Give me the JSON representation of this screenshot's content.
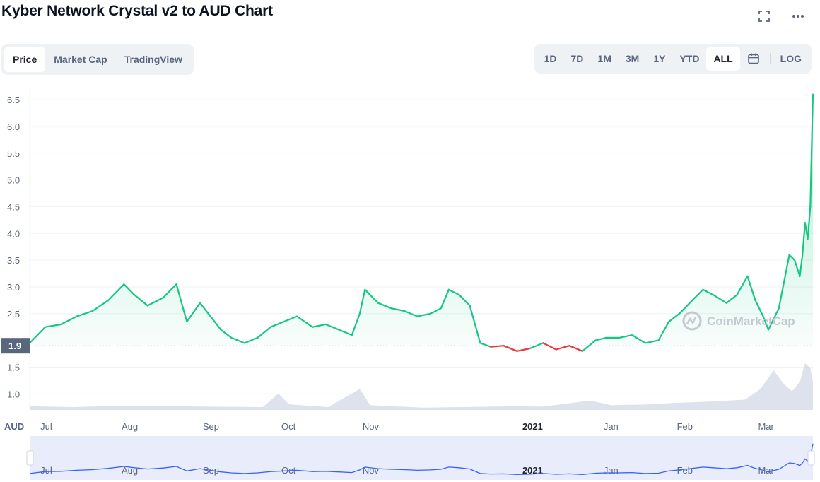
{
  "title": "Kyber Network Crystal v2 to AUD Chart",
  "tabs": [
    {
      "label": "Price",
      "active": true
    },
    {
      "label": "Market Cap",
      "active": false
    },
    {
      "label": "TradingView",
      "active": false
    }
  ],
  "ranges": [
    {
      "label": "1D",
      "active": false
    },
    {
      "label": "7D",
      "active": false
    },
    {
      "label": "1M",
      "active": false
    },
    {
      "label": "3M",
      "active": false
    },
    {
      "label": "1Y",
      "active": false
    },
    {
      "label": "YTD",
      "active": false
    },
    {
      "label": "ALL",
      "active": true
    }
  ],
  "log_label": "LOG",
  "icons": {
    "fullscreen": "fullscreen-icon",
    "more": "more-icon",
    "calendar": "calendar-icon"
  },
  "watermark": "CoinMarketCap",
  "colors": {
    "up": "#16c784",
    "down": "#ea3943",
    "volume": "#cfd6e4",
    "navigator": "#3861fb"
  },
  "chart_data": {
    "type": "line",
    "currency_label": "AUD",
    "reference_price": 1.9,
    "reference_label": "1.9",
    "y_ticks": [
      1.0,
      1.5,
      2.5,
      3.0,
      3.5,
      4.0,
      4.5,
      5.0,
      5.5,
      6.0,
      6.5
    ],
    "ylim": [
      0.7,
      6.7
    ],
    "x_ticks": [
      {
        "label": "Jul",
        "date": "2020-07-01"
      },
      {
        "label": "Aug",
        "date": "2020-08-01"
      },
      {
        "label": "Sep",
        "date": "2020-09-01"
      },
      {
        "label": "Oct",
        "date": "2020-10-01"
      },
      {
        "label": "Nov",
        "date": "2020-11-01"
      },
      {
        "label": "2021",
        "date": "2021-01-01",
        "bold": true
      },
      {
        "label": "Jan",
        "date": "2021-02-01"
      },
      {
        "label": "Feb",
        "date": "2021-03-01"
      },
      {
        "label": "Mar",
        "date": "2021-04-01"
      }
    ],
    "xlim": [
      "2020-06-28",
      "2021-04-23"
    ],
    "series": [
      {
        "points": [
          [
            "2020-06-28",
            1.95
          ],
          [
            "2020-07-04",
            2.25
          ],
          [
            "2020-07-10",
            2.3
          ],
          [
            "2020-07-16",
            2.45
          ],
          [
            "2020-07-22",
            2.55
          ],
          [
            "2020-07-28",
            2.75
          ],
          [
            "2020-08-03",
            3.05
          ],
          [
            "2020-08-07",
            2.85
          ],
          [
            "2020-08-12",
            2.65
          ],
          [
            "2020-08-18",
            2.8
          ],
          [
            "2020-08-23",
            3.05
          ],
          [
            "2020-08-27",
            2.35
          ],
          [
            "2020-09-01",
            2.7
          ],
          [
            "2020-09-05",
            2.45
          ],
          [
            "2020-09-09",
            2.2
          ],
          [
            "2020-09-13",
            2.05
          ],
          [
            "2020-09-18",
            1.95
          ],
          [
            "2020-09-23",
            2.05
          ],
          [
            "2020-09-28",
            2.25
          ],
          [
            "2020-10-03",
            2.35
          ],
          [
            "2020-10-08",
            2.45
          ],
          [
            "2020-10-14",
            2.25
          ],
          [
            "2020-10-19",
            2.3
          ],
          [
            "2020-10-24",
            2.2
          ],
          [
            "2020-10-29",
            2.1
          ],
          [
            "2020-11-01",
            2.5
          ],
          [
            "2020-11-03",
            2.95
          ],
          [
            "2020-11-08",
            2.7
          ],
          [
            "2020-11-13",
            2.6
          ],
          [
            "2020-11-18",
            2.55
          ],
          [
            "2020-11-23",
            2.45
          ],
          [
            "2020-11-28",
            2.5
          ],
          [
            "2020-12-02",
            2.6
          ],
          [
            "2020-12-05",
            2.95
          ],
          [
            "2020-12-09",
            2.85
          ],
          [
            "2020-12-13",
            2.65
          ],
          [
            "2020-12-17",
            1.95
          ],
          [
            "2020-12-21",
            1.88
          ],
          [
            "2020-12-26",
            1.9
          ],
          [
            "2020-12-31",
            1.8
          ],
          [
            "2021-01-05",
            1.85
          ],
          [
            "2021-01-10",
            1.95
          ],
          [
            "2021-01-15",
            1.83
          ],
          [
            "2021-01-20",
            1.9
          ],
          [
            "2021-01-25",
            1.8
          ],
          [
            "2021-01-30",
            2.0
          ],
          [
            "2021-02-03",
            2.05
          ],
          [
            "2021-02-08",
            2.05
          ],
          [
            "2021-02-13",
            2.1
          ],
          [
            "2021-02-18",
            1.95
          ],
          [
            "2021-02-23",
            2.0
          ],
          [
            "2021-02-27",
            2.35
          ],
          [
            "2021-03-03",
            2.5
          ],
          [
            "2021-03-08",
            2.75
          ],
          [
            "2021-03-12",
            2.95
          ],
          [
            "2021-03-16",
            2.85
          ],
          [
            "2021-03-21",
            2.7
          ],
          [
            "2021-03-25",
            2.85
          ],
          [
            "2021-03-29",
            3.2
          ],
          [
            "2021-04-01",
            2.75
          ],
          [
            "2021-04-04",
            2.45
          ],
          [
            "2021-04-06",
            2.2
          ],
          [
            "2021-04-08",
            2.4
          ],
          [
            "2021-04-10",
            2.6
          ],
          [
            "2021-04-12",
            3.1
          ],
          [
            "2021-04-14",
            3.6
          ],
          [
            "2021-04-16",
            3.5
          ],
          [
            "2021-04-18",
            3.2
          ],
          [
            "2021-04-19",
            3.6
          ],
          [
            "2021-04-20",
            4.2
          ],
          [
            "2021-04-21",
            3.9
          ],
          [
            "2021-04-22",
            4.5
          ],
          [
            "2021-04-23",
            6.6
          ]
        ]
      }
    ],
    "volume": [
      [
        "2020-06-28",
        0.08
      ],
      [
        "2020-07-15",
        0.06
      ],
      [
        "2020-08-01",
        0.09
      ],
      [
        "2020-08-20",
        0.08
      ],
      [
        "2020-09-05",
        0.07
      ],
      [
        "2020-09-25",
        0.06
      ],
      [
        "2020-10-01",
        0.35
      ],
      [
        "2020-10-05",
        0.12
      ],
      [
        "2020-10-20",
        0.06
      ],
      [
        "2020-11-01",
        0.45
      ],
      [
        "2020-11-05",
        0.1
      ],
      [
        "2020-11-25",
        0.05
      ],
      [
        "2020-12-10",
        0.06
      ],
      [
        "2020-12-31",
        0.08
      ],
      [
        "2021-01-10",
        0.07
      ],
      [
        "2021-01-28",
        0.2
      ],
      [
        "2021-02-05",
        0.1
      ],
      [
        "2021-02-20",
        0.12
      ],
      [
        "2021-03-01",
        0.15
      ],
      [
        "2021-03-15",
        0.18
      ],
      [
        "2021-03-28",
        0.22
      ],
      [
        "2021-04-03",
        0.45
      ],
      [
        "2021-04-08",
        0.85
      ],
      [
        "2021-04-12",
        0.55
      ],
      [
        "2021-04-15",
        0.4
      ],
      [
        "2021-04-18",
        0.6
      ],
      [
        "2021-04-20",
        1.0
      ],
      [
        "2021-04-22",
        0.9
      ],
      [
        "2021-04-23",
        0.6
      ]
    ]
  }
}
